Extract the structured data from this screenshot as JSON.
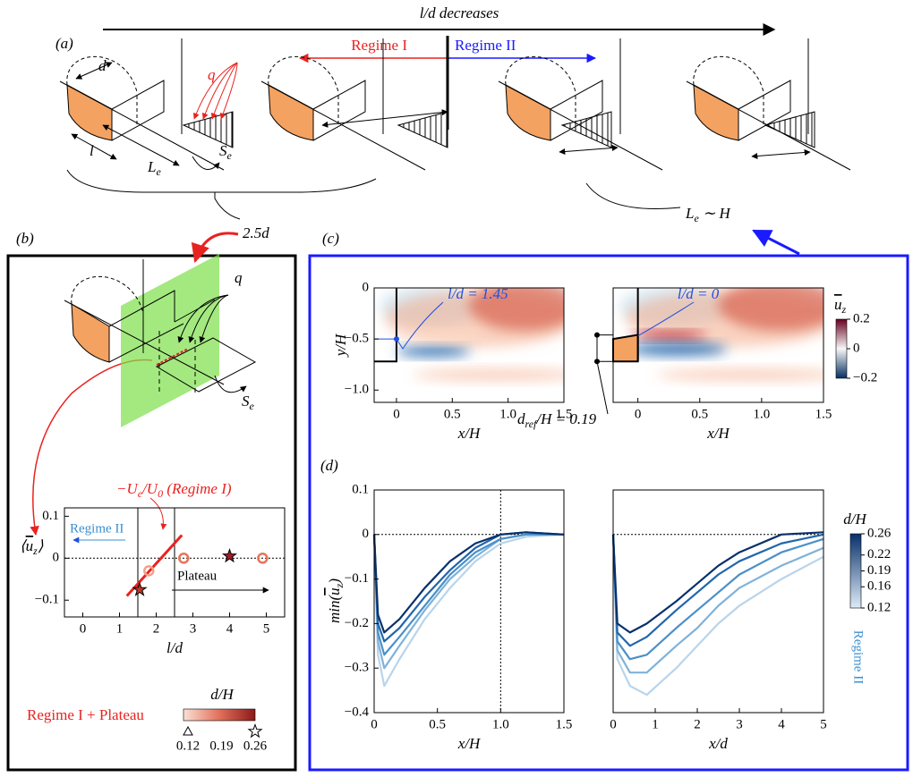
{
  "figure": {
    "panel_a": {
      "label": "(a)",
      "arrow": "l/d decreases",
      "regime_1": "Regime I",
      "regime_2": "Regime II",
      "d": "d",
      "q": "q",
      "l": "l",
      "le": [
        "L",
        "e"
      ],
      "se": [
        "S",
        "e"
      ],
      "spacing": "2.5d",
      "scaling": [
        "L",
        "e",
        " ∼ H"
      ]
    },
    "panel_b": {
      "label": "(b)",
      "q": "q",
      "se": [
        "S",
        "e"
      ]
    },
    "panel_c": {
      "label": "(c)",
      "dref": [
        "d",
        "ref",
        "/H = 0.19"
      ]
    },
    "panel_d": {
      "label": "(d)"
    }
  },
  "chart_data": [
    {
      "type": "scatter",
      "x_label": "l/d",
      "y_label": [
        "⟨",
        "u",
        "z",
        "⟩"
      ],
      "fit_label": [
        "−U",
        "e",
        "/U",
        "0",
        " (Regime I)"
      ],
      "regime_label": "Regime II",
      "plateau_label": "Plateau",
      "x": [
        1.55,
        1.8,
        2.75,
        4.0,
        4.9
      ],
      "values": [
        -0.075,
        -0.03,
        0.0,
        0.005,
        0.0
      ],
      "colors": [
        "#c0392b",
        "#f0a08a",
        "#e8735a",
        "#a51c2a",
        "#e8735a"
      ],
      "markers": [
        "star",
        "circle",
        "circle",
        "star",
        "circle"
      ],
      "fit": {
        "x": [
          1.2,
          2.7
        ],
        "values": [
          -0.09,
          0.055
        ],
        "color": "#e8231f"
      },
      "bounds": [
        1.5,
        2.5
      ],
      "xlim": [
        -0.5,
        5.5
      ],
      "xticks": [
        0,
        1,
        2,
        3,
        4,
        5
      ],
      "ylim": [
        -0.14,
        0.12
      ],
      "yticks": [
        0.1,
        0,
        {
          "value": -0.1,
          "label": "−0.1"
        }
      ],
      "legend": {
        "label": "Regime I + Plateau",
        "title": "d/H",
        "ticks": [
          0.12,
          0.19,
          0.26
        ],
        "markers": [
          "triangle",
          "circle",
          "star"
        ],
        "colors": [
          "#fbe0d6",
          "#e2705a",
          "#8b1a1a"
        ]
      }
    },
    {
      "type": "heatmap",
      "title": "l/d = 1.45",
      "x_label": "x/H",
      "y_label": "y/H",
      "xlim": [
        -0.2,
        1.5
      ],
      "xticks": [
        0,
        0.5,
        {
          "value": 1,
          "label": "1.0"
        },
        1.5
      ],
      "ylim": [
        -1.12,
        0
      ],
      "yticks": [
        0,
        {
          "value": -0.5,
          "label": "−0.5"
        },
        {
          "value": -1,
          "label": "−1.0"
        }
      ]
    },
    {
      "type": "heatmap",
      "title": "l/d = 0",
      "x_label": "x/H",
      "xlim": [
        -0.2,
        1.5
      ],
      "xticks": [
        0,
        0.5,
        {
          "value": 1,
          "label": "1.0"
        },
        1.5
      ],
      "ylim": [
        -1.12,
        0
      ],
      "colorbar": {
        "label": [
          "u",
          "z"
        ],
        "lim": [
          -0.2,
          0.2
        ],
        "ticks": [
          0.2,
          0,
          {
            "value": -0.2,
            "label": "−0.2"
          }
        ],
        "colors": [
          "#053061",
          "#f7f7f7",
          "#67001f"
        ]
      }
    },
    {
      "type": "line",
      "y_label": [
        "min(",
        "u",
        "z",
        ")"
      ],
      "x_label": "x/H",
      "x": [
        0,
        0.03,
        0.08,
        0.2,
        0.4,
        0.6,
        0.8,
        1.0,
        1.2,
        1.5
      ],
      "series": [
        {
          "color": "#08306b",
          "values": [
            0,
            -0.18,
            -0.22,
            -0.19,
            -0.12,
            -0.06,
            -0.02,
            0.0,
            0.005,
            0.0
          ]
        },
        {
          "color": "#2166ac",
          "values": [
            0,
            -0.2,
            -0.24,
            -0.21,
            -0.14,
            -0.08,
            -0.03,
            0,
            0.005,
            0
          ]
        },
        {
          "color": "#4a90c8",
          "values": [
            0,
            -0.22,
            -0.27,
            -0.23,
            -0.16,
            -0.09,
            -0.04,
            -0.01,
            0,
            0
          ]
        },
        {
          "color": "#7fb2d9",
          "values": [
            0,
            -0.24,
            -0.3,
            -0.25,
            -0.17,
            -0.1,
            -0.05,
            -0.01,
            0,
            0
          ]
        },
        {
          "color": "#b9d4ea",
          "values": [
            0,
            -0.27,
            -0.34,
            -0.28,
            -0.19,
            -0.12,
            -0.06,
            -0.02,
            -0.005,
            0
          ]
        }
      ],
      "xlim": [
        0,
        1.5
      ],
      "xticks": [
        0,
        0.5,
        {
          "value": 1,
          "label": "1.0"
        },
        1.5
      ],
      "ylim": [
        -0.4,
        0.1
      ],
      "yticks": [
        0.1,
        0,
        {
          "value": -0.1,
          "label": "−0.1"
        },
        {
          "value": -0.2,
          "label": "−0.2"
        },
        {
          "value": -0.3,
          "label": "−0.3"
        },
        {
          "value": -0.4,
          "label": "−0.4"
        }
      ],
      "ref_x": 1
    },
    {
      "type": "line",
      "x_label": "x/d",
      "x": [
        0,
        0.1,
        0.4,
        0.8,
        1.5,
        2,
        2.5,
        3,
        4,
        5
      ],
      "series": [
        {
          "color": "#08306b",
          "values": [
            0,
            -0.2,
            -0.22,
            -0.2,
            -0.15,
            -0.11,
            -0.07,
            -0.04,
            0,
            0.005
          ]
        },
        {
          "color": "#2166ac",
          "values": [
            0,
            -0.22,
            -0.25,
            -0.23,
            -0.17,
            -0.13,
            -0.09,
            -0.06,
            -0.02,
            0
          ]
        },
        {
          "color": "#4a90c8",
          "values": [
            0,
            -0.24,
            -0.28,
            -0.27,
            -0.21,
            -0.17,
            -0.13,
            -0.09,
            -0.04,
            -0.01
          ]
        },
        {
          "color": "#7fb2d9",
          "values": [
            0,
            -0.26,
            -0.31,
            -0.31,
            -0.25,
            -0.21,
            -0.16,
            -0.12,
            -0.07,
            -0.03
          ]
        },
        {
          "color": "#b9d4ea",
          "values": [
            0,
            -0.28,
            -0.34,
            -0.36,
            -0.3,
            -0.25,
            -0.2,
            -0.16,
            -0.1,
            -0.05
          ]
        }
      ],
      "xlim": [
        0,
        5
      ],
      "xticks": [
        0,
        1,
        2,
        3,
        4,
        5
      ],
      "ylim": [
        -0.4,
        0.1
      ],
      "colorbar": {
        "label": "d/H",
        "lim": [
          0.12,
          0.26
        ],
        "ticks": [
          0.26,
          0.22,
          0.19,
          0.16,
          0.12
        ],
        "colors": [
          "#deebf7",
          "#08306b"
        ],
        "caption": "Regime II"
      }
    }
  ]
}
